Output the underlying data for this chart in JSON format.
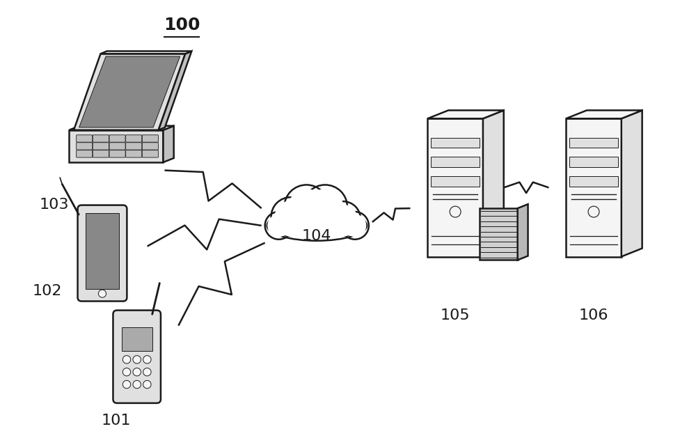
{
  "bg_color": "#ffffff",
  "line_color": "#1a1a1a",
  "fill_light": "#f5f5f5",
  "fill_mid": "#e0e0e0",
  "fill_dark": "#c0c0c0",
  "fill_screen": "#d0d0d0",
  "label_100": "100",
  "label_101": "101",
  "label_102": "102",
  "label_103": "103",
  "label_104": "104",
  "label_105": "105",
  "label_106": "106",
  "figure_size": [
    10.0,
    6.29
  ]
}
